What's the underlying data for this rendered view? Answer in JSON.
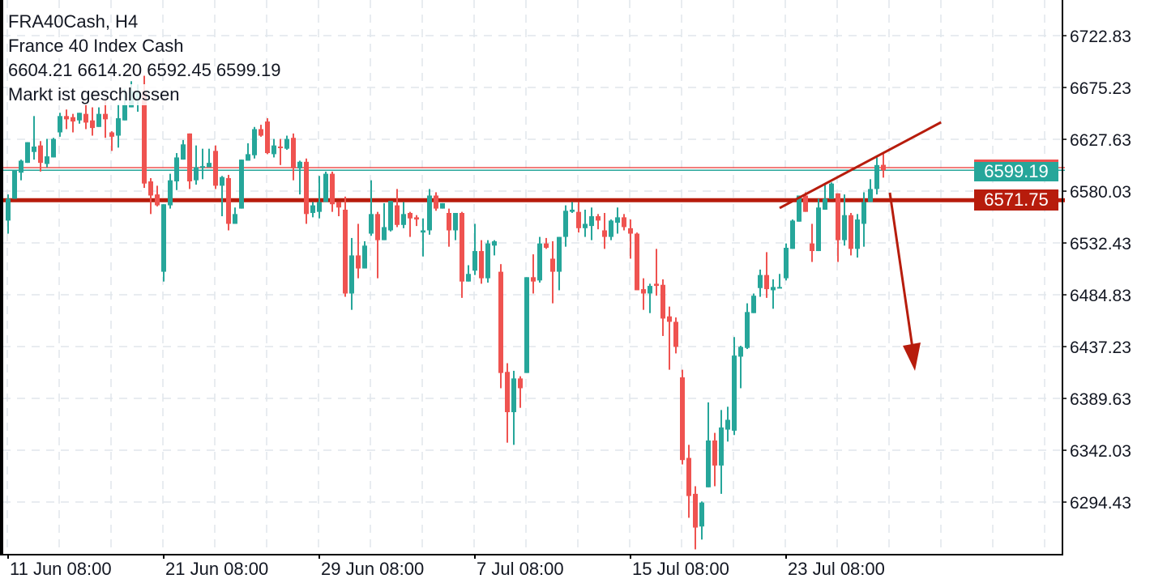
{
  "header": {
    "symbol_timeframe": "FRA40Cash, H4",
    "instrument_name": "France 40 Index Cash",
    "market_status": "Markt ist geschlossen",
    "ohlc_text": "6604.21 6614.20 6592.45 6599.19"
  },
  "colors": {
    "up": "#26a69a",
    "down": "#ef5350",
    "level": "#b71c0c",
    "grid": "#e0e6ec",
    "axis": "#000000"
  },
  "price_labels": {
    "bid": "6599.19",
    "level": "6571.75"
  },
  "chart_data": {
    "type": "candlestick",
    "symbol": "FRA40Cash",
    "timeframe": "H4",
    "ylim": [
      6244.8,
      6755.6
    ],
    "y_ticks": [
      "6722.83",
      "6675.23",
      "6627.63",
      "6580.03",
      "6532.43",
      "6484.83",
      "6437.23",
      "6389.63",
      "6342.03",
      "6294.43"
    ],
    "x_ticks": [
      {
        "index": 0,
        "label": "11 Jun 08:00"
      },
      {
        "index": 24,
        "label": "21 Jun 08:00"
      },
      {
        "index": 48,
        "label": "29 Jun 08:00"
      },
      {
        "index": 72,
        "label": "7 Jul 08:00"
      },
      {
        "index": 96,
        "label": "15 Jul 08:00"
      },
      {
        "index": 120,
        "label": "23 Jul 08:00"
      }
    ],
    "grid": true,
    "ohlc": [
      [
        6553,
        6577,
        6541,
        6573
      ],
      [
        6573,
        6599,
        6573,
        6599
      ],
      [
        6597,
        6609,
        6590,
        6608
      ],
      [
        6606,
        6625,
        6606,
        6625
      ],
      [
        6616,
        6649,
        6609,
        6621
      ],
      [
        6622,
        6626,
        6598,
        6606
      ],
      [
        6605,
        6628,
        6602,
        6612
      ],
      [
        6611,
        6629,
        6611,
        6628
      ],
      [
        6634,
        6652,
        6630,
        6649
      ],
      [
        6649,
        6655,
        6637,
        6646
      ],
      [
        6648,
        6651,
        6634,
        6644
      ],
      [
        6645,
        6652,
        6642,
        6652
      ],
      [
        6651,
        6660,
        6637,
        6643
      ],
      [
        6645,
        6657,
        6631,
        6638
      ],
      [
        6639,
        6657,
        6639,
        6651
      ],
      [
        6651,
        6665,
        6629,
        6646
      ],
      [
        6634,
        6635,
        6617,
        6630
      ],
      [
        6631,
        6660,
        6620,
        6647
      ],
      [
        6645,
        6674,
        6645,
        6659
      ],
      [
        6657,
        6681,
        6657,
        6672
      ],
      [
        6663,
        6678,
        6653,
        6672
      ],
      [
        6672,
        6686,
        6583,
        6587
      ],
      [
        6589,
        6592,
        6559,
        6576
      ],
      [
        6577,
        6585,
        6566,
        6567
      ],
      [
        6506,
        6568,
        6497,
        6568
      ],
      [
        6567,
        6596,
        6564,
        6590
      ],
      [
        6589,
        6615,
        6581,
        6611
      ],
      [
        6609,
        6627,
        6609,
        6623
      ],
      [
        6633,
        6633,
        6582,
        6589
      ],
      [
        6590,
        6622,
        6586,
        6602
      ],
      [
        6602,
        6619,
        6591,
        6603
      ],
      [
        6602,
        6619,
        6602,
        6606
      ],
      [
        6617,
        6622,
        6582,
        6585
      ],
      [
        6585,
        6594,
        6557,
        6593
      ],
      [
        6592,
        6595,
        6544,
        6550
      ],
      [
        6550,
        6565,
        6550,
        6559
      ],
      [
        6564,
        6609,
        6564,
        6609
      ],
      [
        6608,
        6624,
        6608,
        6614
      ],
      [
        6613,
        6639,
        6610,
        6637
      ],
      [
        6637,
        6641,
        6630,
        6631
      ],
      [
        6644,
        6647,
        6614,
        6615
      ],
      [
        6614,
        6628,
        6611,
        6622
      ],
      [
        6621,
        6628,
        6604,
        6620
      ],
      [
        6619,
        6631,
        6618,
        6628
      ],
      [
        6629,
        6633,
        6590,
        6601
      ],
      [
        6601,
        6608,
        6577,
        6607
      ],
      [
        6607,
        6610,
        6550,
        6559
      ],
      [
        6560,
        6570,
        6556,
        6567
      ],
      [
        6561,
        6594,
        6555,
        6570
      ],
      [
        6570,
        6598,
        6570,
        6596
      ],
      [
        6596,
        6598,
        6561,
        6568
      ],
      [
        6570,
        6570,
        6557,
        6565
      ],
      [
        6563,
        6575,
        6483,
        6486
      ],
      [
        6486,
        6537,
        6471,
        6521
      ],
      [
        6521,
        6550,
        6500,
        6509
      ],
      [
        6509,
        6534,
        6509,
        6530
      ],
      [
        6541,
        6590,
        6539,
        6559
      ],
      [
        6559,
        6561,
        6500,
        6535
      ],
      [
        6535,
        6569,
        6535,
        6547
      ],
      [
        6544,
        6571,
        6543,
        6571
      ],
      [
        6567,
        6582,
        6547,
        6549
      ],
      [
        6549,
        6570,
        6546,
        6559
      ],
      [
        6560,
        6561,
        6538,
        6555
      ],
      [
        6556,
        6558,
        6548,
        6554
      ],
      [
        6542,
        6555,
        6520,
        6544
      ],
      [
        6544,
        6582,
        6540,
        6576
      ],
      [
        6576,
        6579,
        6562,
        6564
      ],
      [
        6564,
        6569,
        6564,
        6569
      ],
      [
        6560,
        6564,
        6529,
        6544
      ],
      [
        6544,
        6560,
        6535,
        6560
      ],
      [
        6560,
        6561,
        6482,
        6497
      ],
      [
        6497,
        6512,
        6497,
        6504
      ],
      [
        6507,
        6550,
        6503,
        6525
      ],
      [
        6525,
        6535,
        6495,
        6500
      ],
      [
        6500,
        6535,
        6496,
        6532
      ],
      [
        6530,
        6535,
        6521,
        6534
      ],
      [
        6506,
        6513,
        6399,
        6413
      ],
      [
        6414,
        6422,
        6349,
        6377
      ],
      [
        6377,
        6415,
        6347,
        6408
      ],
      [
        6408,
        6410,
        6381,
        6399
      ],
      [
        6413,
        6501,
        6413,
        6501
      ],
      [
        6501,
        6522,
        6486,
        6497
      ],
      [
        6498,
        6538,
        6496,
        6532
      ],
      [
        6532,
        6537,
        6527,
        6528
      ],
      [
        6518,
        6534,
        6477,
        6506
      ],
      [
        6506,
        6538,
        6489,
        6538
      ],
      [
        6538,
        6567,
        6529,
        6562
      ],
      [
        6561,
        6570,
        6560,
        6563
      ],
      [
        6561,
        6570,
        6542,
        6546
      ],
      [
        6546,
        6563,
        6538,
        6550
      ],
      [
        6548,
        6565,
        6535,
        6557
      ],
      [
        6557,
        6559,
        6545,
        6553
      ],
      [
        6544,
        6560,
        6527,
        6538
      ],
      [
        6538,
        6554,
        6535,
        6553
      ],
      [
        6551,
        6565,
        6541,
        6556
      ],
      [
        6556,
        6559,
        6544,
        6547
      ],
      [
        6546,
        6554,
        6518,
        6541
      ],
      [
        6541,
        6542,
        6489,
        6489
      ],
      [
        6490,
        6500,
        6471,
        6486
      ],
      [
        6486,
        6495,
        6468,
        6493
      ],
      [
        6495,
        6527,
        6484,
        6493
      ],
      [
        6494,
        6499,
        6447,
        6463
      ],
      [
        6465,
        6474,
        6416,
        6460
      ],
      [
        6460,
        6464,
        6431,
        6437
      ],
      [
        6409,
        6416,
        6329,
        6333
      ],
      [
        6335,
        6347,
        6280,
        6300
      ],
      [
        6302,
        6309,
        6251,
        6271
      ],
      [
        6272,
        6295,
        6260,
        6294
      ],
      [
        6308,
        6386,
        6308,
        6351
      ],
      [
        6351,
        6358,
        6309,
        6328
      ],
      [
        6328,
        6379,
        6302,
        6363
      ],
      [
        6361,
        6382,
        6350,
        6370
      ],
      [
        6360,
        6446,
        6356,
        6429
      ],
      [
        6428,
        6438,
        6399,
        6437
      ],
      [
        6436,
        6477,
        6435,
        6469
      ],
      [
        6468,
        6486,
        6468,
        6484
      ],
      [
        6491,
        6508,
        6483,
        6503
      ],
      [
        6503,
        6524,
        6482,
        6490
      ],
      [
        6489,
        6499,
        6472,
        6492
      ],
      [
        6491,
        6504,
        6491,
        6492
      ],
      [
        6500,
        6532,
        6498,
        6528
      ],
      [
        6527,
        6554,
        6527,
        6553
      ],
      [
        6552,
        6576,
        6552,
        6576
      ],
      [
        6576,
        6579,
        6561,
        6561
      ],
      [
        6532,
        6550,
        6515,
        6525
      ],
      [
        6525,
        6573,
        6525,
        6565
      ],
      [
        6563,
        6586,
        6563,
        6573
      ],
      [
        6573,
        6588,
        6573,
        6587
      ],
      [
        6578,
        6578,
        6515,
        6535
      ],
      [
        6535,
        6577,
        6530,
        6558
      ],
      [
        6558,
        6560,
        6521,
        6527
      ],
      [
        6527,
        6559,
        6519,
        6554
      ],
      [
        6550,
        6579,
        6529,
        6570
      ],
      [
        6570,
        6591,
        6570,
        6582
      ],
      [
        6582,
        6611,
        6577,
        6604
      ],
      [
        6604.21,
        6614.2,
        6592.45,
        6599.19
      ]
    ],
    "horizontal_levels": {
      "bid": 6599.19,
      "ask": 6601.6,
      "level": 6571.75
    },
    "drawings": {
      "trendline": {
        "from": [
          119,
          6564.5
        ],
        "to": [
          143.9,
          6643.3
        ]
      },
      "arrow": {
        "from": [
          136,
          6578.6
        ],
        "to": [
          139.75,
          6417.2
        ]
      }
    }
  }
}
